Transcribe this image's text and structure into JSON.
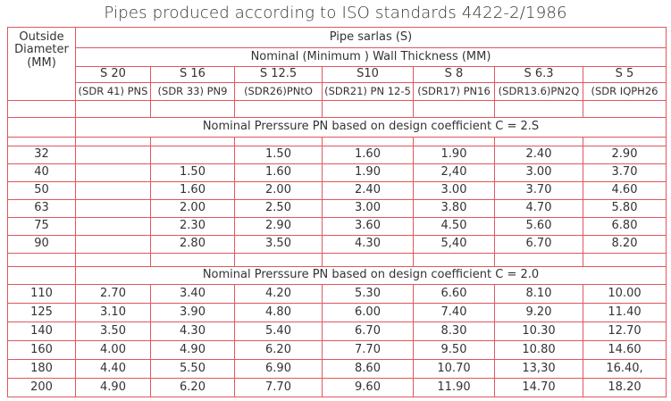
{
  "header": {
    "title": "Pipes produced according to ISO standards 4422-2/1986"
  },
  "table": {
    "corner": "Outside Diameter (MM)",
    "group": "Pipe sarlas (S)",
    "subgroup": "Nominal (Minimum ) Wall Thickness (MM)",
    "series": [
      "S 20",
      "S 16",
      "S 12.5",
      "S10",
      "S 8",
      "S 6.3",
      "S 5"
    ],
    "sdr": [
      "(SDR 41) PNS",
      "(SDR 33) PN9",
      "(SDR26)PNtO",
      "(SDR21) PN 12-5",
      "(SDR17) PN16",
      "(SDR13.6)PN2Q",
      "(SDR IQPH26"
    ],
    "sections": [
      {
        "title": "Nominal Prerssure PN based on design coefficient C = 2.S",
        "rows": [
          {
            "od": "32",
            "values": [
              null,
              null,
              "1.50",
              "1.60",
              "1.90",
              "2.40",
              "2.90"
            ]
          },
          {
            "od": "40",
            "values": [
              null,
              "1.50",
              "1.60",
              "1.90",
              "2,40",
              "3.00",
              "3.70"
            ]
          },
          {
            "od": "50",
            "values": [
              null,
              "1.60",
              "2.00",
              "2.40",
              "3.00",
              "3.70",
              "4.60"
            ]
          },
          {
            "od": "63",
            "values": [
              null,
              "2.00",
              "2.50",
              "3.00",
              "3.80",
              "4.70",
              "5.80"
            ]
          },
          {
            "od": "75",
            "values": [
              null,
              "2.30",
              "2.90",
              "3.60",
              "4.50",
              "5.60",
              "6.80"
            ]
          },
          {
            "od": "90",
            "values": [
              null,
              "2.80",
              "3.50",
              "4.30",
              "5,40",
              "6.70",
              "8.20"
            ]
          }
        ]
      },
      {
        "title": "Nominal Prerssure PN based on design coefficient C = 2.0",
        "rows": [
          {
            "od": "110",
            "values": [
              "2.70",
              "3.40",
              "4.20",
              "5.30",
              "6.60",
              "8.10",
              "10.00"
            ]
          },
          {
            "od": "125",
            "values": [
              "3.10",
              "3.90",
              "4.80",
              "6.00",
              "7.40",
              "9.20",
              "11.40"
            ]
          },
          {
            "od": "140",
            "values": [
              "3.50",
              "4.30",
              "5.40",
              "6.70",
              "8.30",
              "10.30",
              "12.70"
            ]
          },
          {
            "od": "160",
            "values": [
              "4.00",
              "4.90",
              "6.20",
              "7.70",
              "9.50",
              "10.80",
              "14.60"
            ]
          },
          {
            "od": "180",
            "values": [
              "4.40",
              "5.50",
              "6.90",
              "8.60",
              "10.70",
              "13,30",
              "16.40,"
            ]
          },
          {
            "od": "200",
            "values": [
              "4.90",
              "6.20",
              "7.70",
              "9.60",
              "11.90",
              "14.70",
              "18.20"
            ]
          }
        ]
      }
    ]
  }
}
